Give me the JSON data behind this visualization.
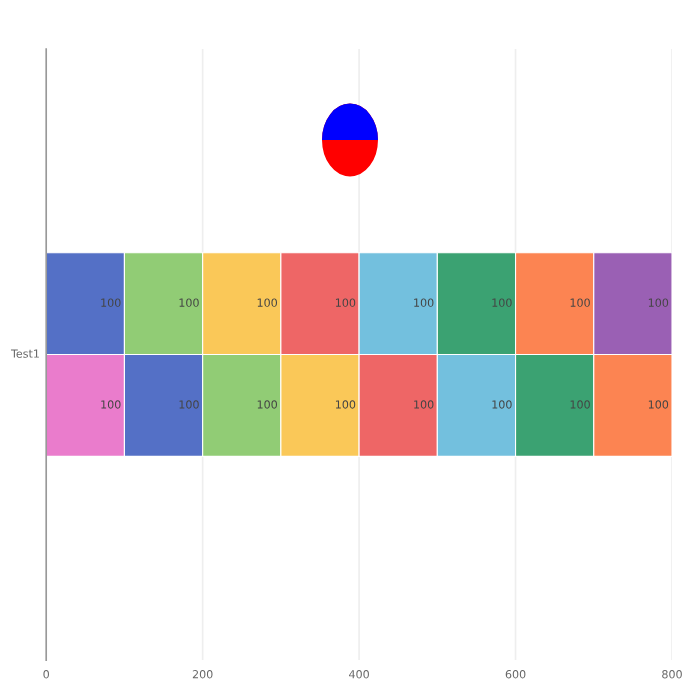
{
  "chart_data": {
    "type": "bar",
    "orientation": "horizontal",
    "stacked": true,
    "ylabel": "Test1",
    "categories": [
      null,
      null
    ],
    "series": [
      {
        "colors": [
          "#5470c6",
          "#ea7ccc"
        ],
        "values": [
          100,
          100
        ]
      },
      {
        "colors": [
          "#91cc75",
          "#5470c6"
        ],
        "values": [
          100,
          100
        ]
      },
      {
        "colors": [
          "#fac858",
          "#91cc75"
        ],
        "values": [
          100,
          100
        ]
      },
      {
        "colors": [
          "#ee6666",
          "#fac858"
        ],
        "values": [
          100,
          100
        ]
      },
      {
        "colors": [
          "#73c0de",
          "#ee6666"
        ],
        "values": [
          100,
          100
        ]
      },
      {
        "colors": [
          "#3ba272",
          "#73c0de"
        ],
        "values": [
          100,
          100
        ]
      },
      {
        "colors": [
          "#fc8452",
          "#3ba272"
        ],
        "values": [
          100,
          100
        ]
      },
      {
        "colors": [
          "#9a60b4",
          "#fc8452"
        ],
        "values": [
          100,
          100
        ]
      }
    ],
    "xlim": [
      0,
      800
    ],
    "xticks": [
      0,
      200,
      400,
      600,
      800
    ],
    "grid": "x",
    "data_labels": true
  }
}
